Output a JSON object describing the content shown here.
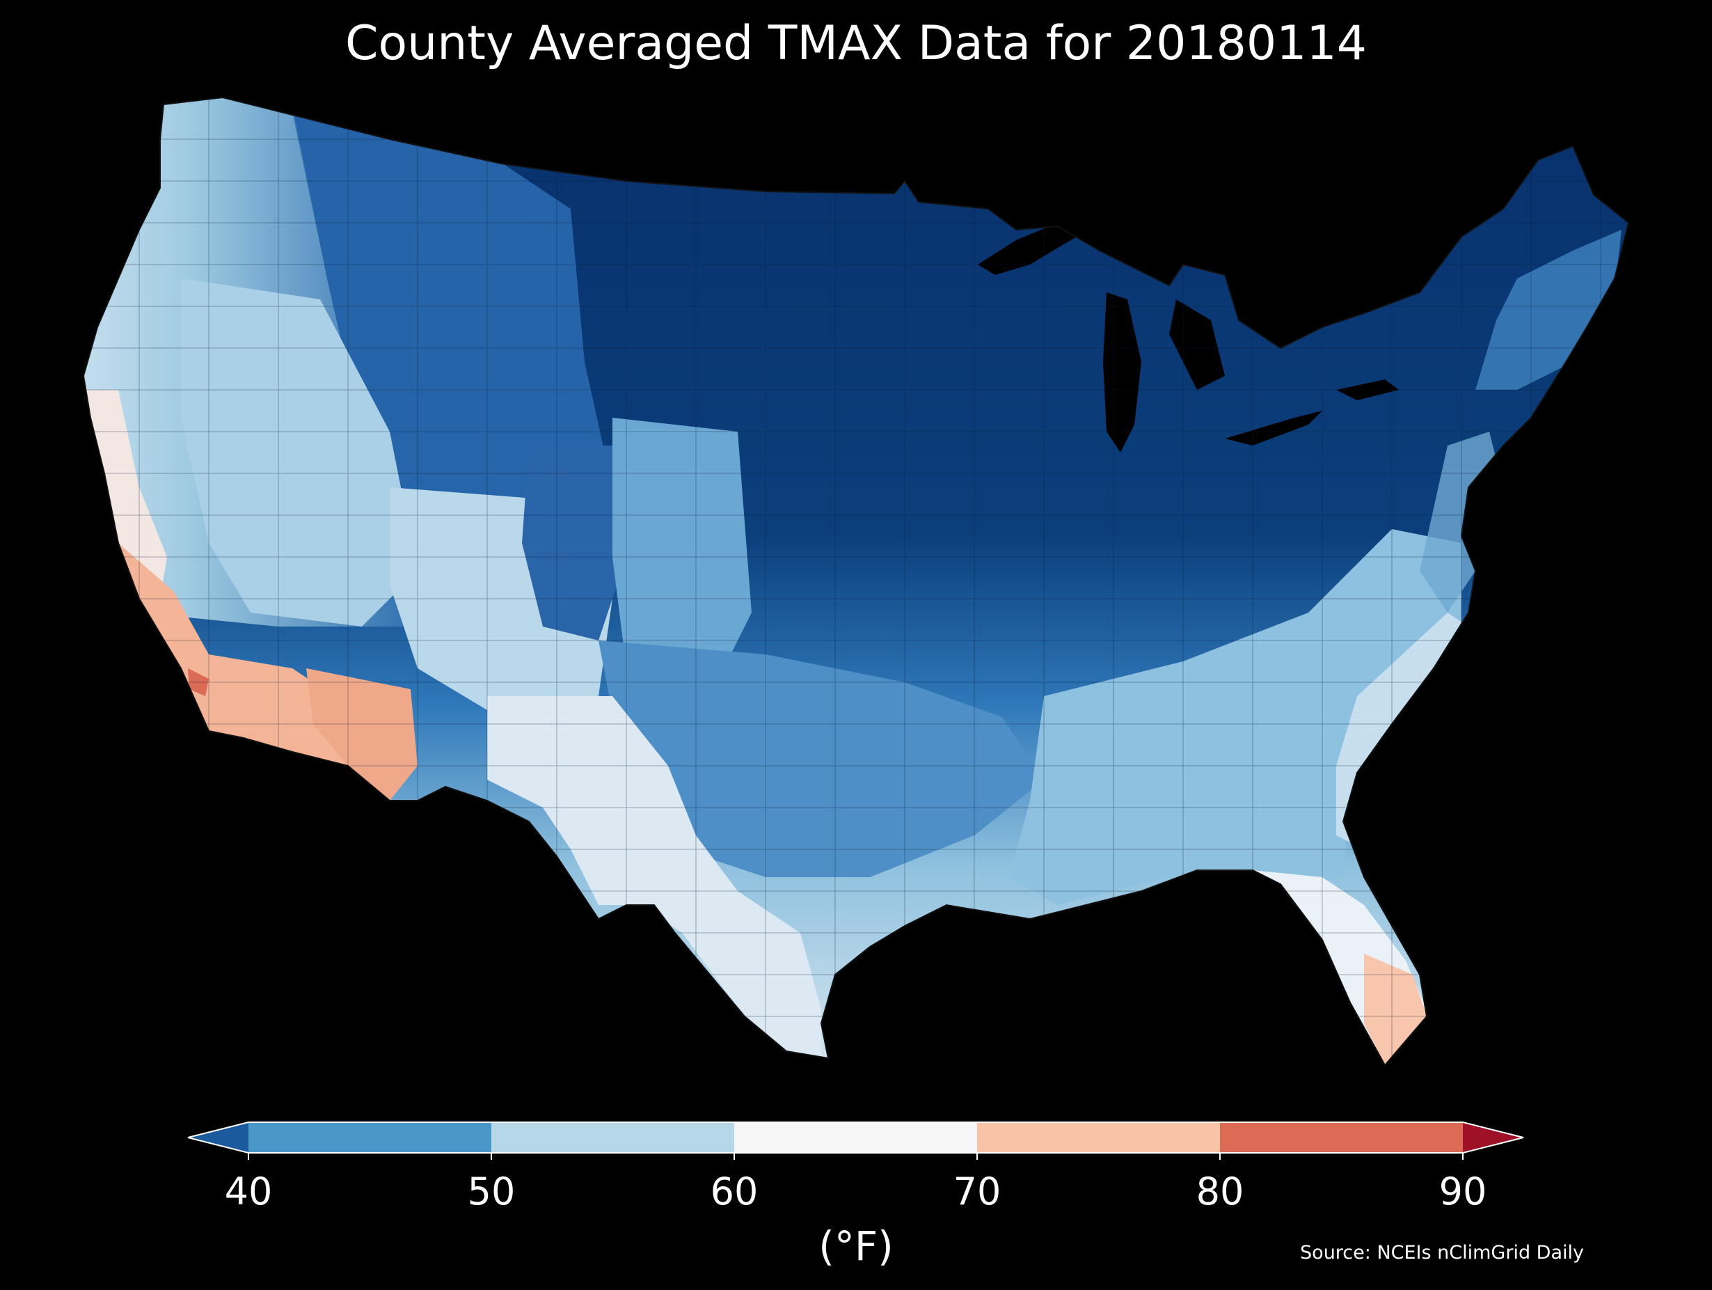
{
  "title": "County Averaged TMAX Data for 20180114",
  "colorbar": {
    "unit_label": "(°F)",
    "ticks": [
      "40",
      "50",
      "60",
      "70",
      "80",
      "90"
    ],
    "bins": [
      {
        "from": 40,
        "to": 50,
        "color": "#4a97c9"
      },
      {
        "from": 50,
        "to": 60,
        "color": "#b6d7e8"
      },
      {
        "from": 60,
        "to": 70,
        "color": "#f6f6f6"
      },
      {
        "from": 70,
        "to": 80,
        "color": "#f9c3a7"
      },
      {
        "from": 80,
        "to": 90,
        "color": "#dc6b55"
      }
    ],
    "under_color": "#1c5a9e",
    "over_color": "#9e1127",
    "extend": "both"
  },
  "source": "Source: NCEIs nClimGrid Daily",
  "map": {
    "background_color": "#000000",
    "regions": [
      {
        "name": "northern-plains-midwest",
        "tmax_range": "below 40",
        "color": "#08306b"
      },
      {
        "name": "northern-rockies",
        "tmax_range": "40-45",
        "color": "#2b6cb3"
      },
      {
        "name": "southeast",
        "tmax_range": "50-60",
        "color": "#9fcae3"
      },
      {
        "name": "texas-southwest",
        "tmax_range": "60-70",
        "color": "#e4eef6"
      },
      {
        "name": "southern-california-arizona",
        "tmax_range": "70-80",
        "color": "#f4b497"
      },
      {
        "name": "south-florida",
        "tmax_range": "70-80",
        "color": "#f8c6ac"
      }
    ]
  }
}
